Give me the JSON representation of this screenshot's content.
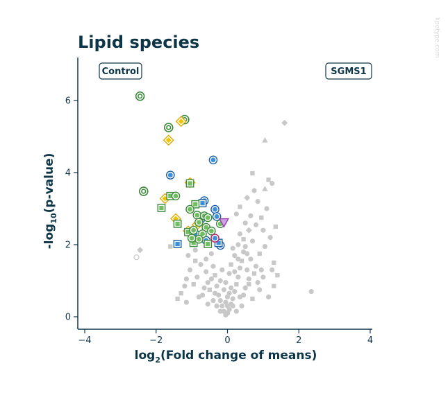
{
  "title": "Lipid species",
  "watermark": "lipotype.com",
  "chart_data": {
    "type": "scatter",
    "title": "Lipid species",
    "xlabel": "log2(Fold change of means)",
    "xlabel_main": "log",
    "xlabel_sub": "2",
    "xlabel_rest": "(Fold change of means)",
    "ylabel": "-log10(p-value)",
    "ylabel_pre": "-log",
    "ylabel_sub": "10",
    "ylabel_rest": "(p-value)",
    "xlim": [
      -4,
      4
    ],
    "ylim": [
      0,
      7
    ],
    "xticks": [
      -4,
      -2,
      0,
      2,
      4
    ],
    "yticks": [
      0,
      2,
      4,
      6
    ],
    "xtick_labels": [
      "−4",
      "−2",
      "0",
      "2",
      "4"
    ],
    "ytick_labels": [
      "0",
      "2",
      "4",
      "6"
    ],
    "grid": false,
    "left_label": "Control",
    "right_label": "SGMS1",
    "colors": {
      "axis": "#0d3548",
      "gray": "#c8c8c8",
      "green": "#3a8a3a",
      "green_fill": "#6fbf5f",
      "blue": "#1a5ea8",
      "blue_fill": "#3d8fd8",
      "orange": "#e0a800",
      "orange_fill": "#f2c400",
      "purple": "#9a3fb0",
      "purple_fill": "#c9a6e0",
      "magenta": "#c0186a"
    },
    "highlighted": [
      {
        "x": -2.45,
        "y": 6.12,
        "shape": "ring",
        "color": "green"
      },
      {
        "x": -1.2,
        "y": 5.47,
        "shape": "ring",
        "color": "green"
      },
      {
        "x": -1.65,
        "y": 5.25,
        "shape": "ring",
        "color": "green"
      },
      {
        "x": -2.35,
        "y": 3.48,
        "shape": "ring",
        "color": "green"
      },
      {
        "x": -1.3,
        "y": 5.42,
        "shape": "diamond",
        "color": "orange"
      },
      {
        "x": -1.65,
        "y": 4.9,
        "shape": "diamond",
        "color": "orange"
      },
      {
        "x": -1.05,
        "y": 3.72,
        "shape": "diamond",
        "color": "orange"
      },
      {
        "x": -1.75,
        "y": 3.28,
        "shape": "diamond",
        "color": "orange"
      },
      {
        "x": -1.45,
        "y": 2.72,
        "shape": "diamond",
        "color": "orange"
      },
      {
        "x": -1.1,
        "y": 2.38,
        "shape": "diamond",
        "color": "orange"
      },
      {
        "x": -0.85,
        "y": 2.55,
        "shape": "diamond",
        "color": "orange"
      },
      {
        "x": -0.4,
        "y": 4.35,
        "shape": "circle",
        "color": "blue"
      },
      {
        "x": -1.6,
        "y": 3.93,
        "shape": "circle",
        "color": "blue"
      },
      {
        "x": -0.65,
        "y": 3.22,
        "shape": "circle",
        "color": "blue"
      },
      {
        "x": -0.35,
        "y": 2.98,
        "shape": "circle",
        "color": "blue"
      },
      {
        "x": -0.3,
        "y": 2.78,
        "shape": "circle",
        "color": "blue"
      },
      {
        "x": -0.75,
        "y": 2.7,
        "shape": "circle",
        "color": "blue"
      },
      {
        "x": -0.2,
        "y": 1.98,
        "shape": "circle",
        "color": "blue"
      },
      {
        "x": -0.6,
        "y": 2.12,
        "shape": "circle",
        "color": "blue"
      },
      {
        "x": -0.9,
        "y": 2.3,
        "shape": "circle",
        "color": "blue"
      },
      {
        "x": -1.4,
        "y": 2.02,
        "shape": "square",
        "color": "blue"
      },
      {
        "x": -0.7,
        "y": 3.15,
        "shape": "square",
        "color": "blue"
      },
      {
        "x": -0.25,
        "y": 2.05,
        "shape": "square",
        "color": "blue"
      },
      {
        "x": -1.05,
        "y": 3.7,
        "shape": "square",
        "color": "green"
      },
      {
        "x": -1.6,
        "y": 3.35,
        "shape": "square",
        "color": "green"
      },
      {
        "x": -1.85,
        "y": 3.02,
        "shape": "square",
        "color": "green"
      },
      {
        "x": -0.9,
        "y": 3.12,
        "shape": "square",
        "color": "green"
      },
      {
        "x": -1.4,
        "y": 2.58,
        "shape": "square",
        "color": "green"
      },
      {
        "x": -1.1,
        "y": 2.35,
        "shape": "square",
        "color": "green"
      },
      {
        "x": -0.95,
        "y": 2.05,
        "shape": "square",
        "color": "green"
      },
      {
        "x": -0.55,
        "y": 2.02,
        "shape": "square",
        "color": "green"
      },
      {
        "x": -1.45,
        "y": 3.35,
        "shape": "circle",
        "color": "green"
      },
      {
        "x": -1.05,
        "y": 2.98,
        "shape": "circle",
        "color": "green"
      },
      {
        "x": -0.85,
        "y": 2.82,
        "shape": "circle",
        "color": "green"
      },
      {
        "x": -0.65,
        "y": 2.8,
        "shape": "circle",
        "color": "green"
      },
      {
        "x": -0.55,
        "y": 2.75,
        "shape": "circle",
        "color": "green"
      },
      {
        "x": -0.8,
        "y": 2.62,
        "shape": "circle",
        "color": "green"
      },
      {
        "x": -0.6,
        "y": 2.48,
        "shape": "circle",
        "color": "green"
      },
      {
        "x": -0.95,
        "y": 2.4,
        "shape": "circle",
        "color": "green"
      },
      {
        "x": -0.7,
        "y": 2.3,
        "shape": "circle",
        "color": "green"
      },
      {
        "x": -0.45,
        "y": 2.38,
        "shape": "circle",
        "color": "green"
      },
      {
        "x": -0.8,
        "y": 2.15,
        "shape": "circle",
        "color": "green"
      },
      {
        "x": -0.2,
        "y": 2.58,
        "shape": "circle",
        "color": "green"
      },
      {
        "x": -1.0,
        "y": 2.18,
        "shape": "circle",
        "color": "green"
      },
      {
        "x": -0.35,
        "y": 2.18,
        "shape": "circle",
        "color": "magenta"
      },
      {
        "x": -0.1,
        "y": 2.62,
        "shape": "triangle-down",
        "color": "purple"
      }
    ],
    "background": [
      {
        "x": -2.45,
        "y": 1.85,
        "shape": "diamond"
      },
      {
        "x": -2.55,
        "y": 1.65,
        "shape": "ring"
      },
      {
        "x": 1.6,
        "y": 5.38,
        "shape": "diamond"
      },
      {
        "x": 1.05,
        "y": 4.9,
        "shape": "triangle"
      },
      {
        "x": 2.35,
        "y": 0.7,
        "shape": "circle"
      },
      {
        "x": 0.7,
        "y": 3.98,
        "shape": "square"
      },
      {
        "x": 0.55,
        "y": 3.3,
        "shape": "diamond"
      },
      {
        "x": 1.25,
        "y": 3.7,
        "shape": "circle"
      },
      {
        "x": 1.05,
        "y": 3.55,
        "shape": "triangle"
      },
      {
        "x": 1.15,
        "y": 3.8,
        "shape": "square"
      },
      {
        "x": 0.85,
        "y": 3.2,
        "shape": "circle"
      },
      {
        "x": 0.35,
        "y": 3.05,
        "shape": "square"
      },
      {
        "x": 0.25,
        "y": 2.85,
        "shape": "circle"
      },
      {
        "x": 0.95,
        "y": 2.75,
        "shape": "square"
      },
      {
        "x": 1.35,
        "y": 2.5,
        "shape": "square"
      },
      {
        "x": 1.2,
        "y": 2.2,
        "shape": "circle"
      },
      {
        "x": 0.6,
        "y": 2.4,
        "shape": "diamond"
      },
      {
        "x": 0.8,
        "y": 2.55,
        "shape": "circle"
      },
      {
        "x": 0.45,
        "y": 2.15,
        "shape": "square"
      },
      {
        "x": 1.05,
        "y": 1.95,
        "shape": "circle"
      },
      {
        "x": 0.9,
        "y": 1.75,
        "shape": "square"
      },
      {
        "x": 0.65,
        "y": 1.6,
        "shape": "circle"
      },
      {
        "x": 1.3,
        "y": 1.5,
        "shape": "square"
      },
      {
        "x": 1.25,
        "y": 1.3,
        "shape": "circle"
      },
      {
        "x": 0.75,
        "y": 1.2,
        "shape": "square"
      },
      {
        "x": 1.0,
        "y": 1.1,
        "shape": "circle"
      },
      {
        "x": 1.3,
        "y": 0.85,
        "shape": "square"
      },
      {
        "x": 0.9,
        "y": 0.75,
        "shape": "circle"
      },
      {
        "x": 0.6,
        "y": 0.9,
        "shape": "square"
      },
      {
        "x": 0.45,
        "y": 0.6,
        "shape": "circle"
      },
      {
        "x": 1.15,
        "y": 0.55,
        "shape": "circle"
      },
      {
        "x": -1.6,
        "y": 1.95,
        "shape": "square"
      },
      {
        "x": -1.15,
        "y": 1.05,
        "shape": "circle"
      },
      {
        "x": -1.3,
        "y": 0.65,
        "shape": "square"
      },
      {
        "x": -1.2,
        "y": 0.85,
        "shape": "circle"
      },
      {
        "x": -1.4,
        "y": 0.5,
        "shape": "square"
      },
      {
        "x": -0.9,
        "y": 1.55,
        "shape": "square"
      },
      {
        "x": -1.05,
        "y": 1.3,
        "shape": "circle"
      },
      {
        "x": -0.75,
        "y": 1.45,
        "shape": "circle"
      },
      {
        "x": -0.85,
        "y": 1.1,
        "shape": "circle"
      },
      {
        "x": -0.95,
        "y": 0.9,
        "shape": "square"
      },
      {
        "x": -1.15,
        "y": 0.4,
        "shape": "circle"
      },
      {
        "x": -0.7,
        "y": 0.6,
        "shape": "circle"
      },
      {
        "x": -0.6,
        "y": 1.25,
        "shape": "circle"
      },
      {
        "x": -0.55,
        "y": 0.95,
        "shape": "circle"
      },
      {
        "x": -0.5,
        "y": 0.75,
        "shape": "square"
      },
      {
        "x": -0.45,
        "y": 1.75,
        "shape": "circle"
      },
      {
        "x": -0.4,
        "y": 1.4,
        "shape": "circle"
      },
      {
        "x": -0.35,
        "y": 1.15,
        "shape": "square"
      },
      {
        "x": -0.3,
        "y": 0.85,
        "shape": "circle"
      },
      {
        "x": -0.25,
        "y": 0.6,
        "shape": "circle"
      },
      {
        "x": -0.2,
        "y": 0.45,
        "shape": "circle"
      },
      {
        "x": -0.15,
        "y": 0.3,
        "shape": "circle"
      },
      {
        "x": -0.1,
        "y": 0.15,
        "shape": "circle"
      },
      {
        "x": -0.05,
        "y": 0.05,
        "shape": "circle"
      },
      {
        "x": 0.0,
        "y": 0.1,
        "shape": "circle"
      },
      {
        "x": 0.05,
        "y": 0.2,
        "shape": "circle"
      },
      {
        "x": 0.1,
        "y": 0.35,
        "shape": "circle"
      },
      {
        "x": 0.15,
        "y": 0.5,
        "shape": "circle"
      },
      {
        "x": 0.2,
        "y": 0.7,
        "shape": "circle"
      },
      {
        "x": 0.25,
        "y": 0.9,
        "shape": "square"
      },
      {
        "x": 0.3,
        "y": 1.1,
        "shape": "circle"
      },
      {
        "x": 0.35,
        "y": 1.35,
        "shape": "circle"
      },
      {
        "x": 0.4,
        "y": 1.55,
        "shape": "square"
      },
      {
        "x": 0.45,
        "y": 1.8,
        "shape": "circle"
      },
      {
        "x": 0.5,
        "y": 1.95,
        "shape": "circle"
      },
      {
        "x": 0.3,
        "y": 2.0,
        "shape": "circle"
      },
      {
        "x": 0.2,
        "y": 1.7,
        "shape": "circle"
      },
      {
        "x": 0.1,
        "y": 1.45,
        "shape": "square"
      },
      {
        "x": 0.05,
        "y": 1.2,
        "shape": "circle"
      },
      {
        "x": -0.05,
        "y": 0.95,
        "shape": "circle"
      },
      {
        "x": -0.1,
        "y": 0.75,
        "shape": "circle"
      },
      {
        "x": -0.2,
        "y": 1.0,
        "shape": "circle"
      },
      {
        "x": 0.0,
        "y": 0.55,
        "shape": "circle"
      },
      {
        "x": 0.1,
        "y": 0.8,
        "shape": "circle"
      },
      {
        "x": 0.2,
        "y": 1.25,
        "shape": "circle"
      },
      {
        "x": -0.15,
        "y": 1.3,
        "shape": "circle"
      },
      {
        "x": -0.05,
        "y": 0.4,
        "shape": "circle"
      },
      {
        "x": 0.05,
        "y": 0.65,
        "shape": "circle"
      },
      {
        "x": 0.15,
        "y": 0.3,
        "shape": "circle"
      },
      {
        "x": -0.3,
        "y": 0.3,
        "shape": "circle"
      },
      {
        "x": -0.4,
        "y": 0.45,
        "shape": "circle"
      },
      {
        "x": -0.55,
        "y": 0.35,
        "shape": "circle"
      },
      {
        "x": -0.65,
        "y": 0.8,
        "shape": "circle"
      },
      {
        "x": -0.8,
        "y": 0.55,
        "shape": "circle"
      },
      {
        "x": -0.45,
        "y": 1.05,
        "shape": "circle"
      },
      {
        "x": 0.35,
        "y": 0.55,
        "shape": "circle"
      },
      {
        "x": 0.4,
        "y": 0.3,
        "shape": "circle"
      },
      {
        "x": 0.55,
        "y": 1.3,
        "shape": "circle"
      },
      {
        "x": 0.6,
        "y": 1.05,
        "shape": "circle"
      },
      {
        "x": 0.7,
        "y": 0.5,
        "shape": "square"
      },
      {
        "x": 0.8,
        "y": 1.4,
        "shape": "circle"
      },
      {
        "x": 0.85,
        "y": 0.95,
        "shape": "circle"
      },
      {
        "x": 0.5,
        "y": 0.8,
        "shape": "circle"
      },
      {
        "x": 0.25,
        "y": 0.15,
        "shape": "circle"
      },
      {
        "x": -0.2,
        "y": 0.15,
        "shape": "circle"
      },
      {
        "x": 0.0,
        "y": 0.3,
        "shape": "circle"
      },
      {
        "x": -0.35,
        "y": 0.65,
        "shape": "circle"
      },
      {
        "x": 0.3,
        "y": 1.6,
        "shape": "circle"
      },
      {
        "x": 0.15,
        "y": 1.9,
        "shape": "circle"
      },
      {
        "x": 0.55,
        "y": 1.75,
        "shape": "circle"
      },
      {
        "x": 0.7,
        "y": 2.1,
        "shape": "circle"
      },
      {
        "x": 0.35,
        "y": 2.3,
        "shape": "circle"
      },
      {
        "x": 0.5,
        "y": 2.6,
        "shape": "circle"
      },
      {
        "x": 0.65,
        "y": 2.8,
        "shape": "circle"
      },
      {
        "x": -0.6,
        "y": 1.6,
        "shape": "circle"
      },
      {
        "x": -0.9,
        "y": 1.85,
        "shape": "circle"
      },
      {
        "x": -1.1,
        "y": 1.7,
        "shape": "circle"
      },
      {
        "x": 1.0,
        "y": 2.4,
        "shape": "circle"
      },
      {
        "x": 1.1,
        "y": 3.0,
        "shape": "circle"
      },
      {
        "x": 0.95,
        "y": 1.3,
        "shape": "circle"
      },
      {
        "x": 1.4,
        "y": 1.15,
        "shape": "square"
      },
      {
        "x": 0.75,
        "y": 3.5,
        "shape": "circle"
      }
    ]
  }
}
